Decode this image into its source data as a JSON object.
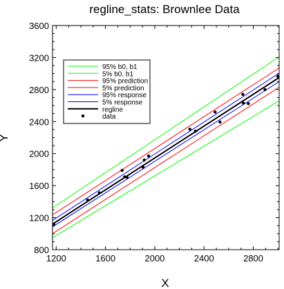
{
  "chart_data": {
    "type": "line",
    "title": "regline_stats: Brownlee Data",
    "xlabel": "X",
    "ylabel": "Y",
    "xlim": [
      1170,
      3010
    ],
    "ylim": [
      800,
      3600
    ],
    "x_ticks": [
      1200,
      1600,
      2000,
      2400,
      2800
    ],
    "y_ticks": [
      800,
      1200,
      1600,
      2000,
      2400,
      2800,
      3200,
      3600
    ],
    "grid": false,
    "legend_position": "upper-left",
    "series": [
      {
        "name": "95% b0, b1",
        "color": "#00ff00",
        "x": [
          1170,
          3010
        ],
        "y": [
          1320,
          3210
        ]
      },
      {
        "name": "5% b0, b1",
        "color": "#00ff00",
        "x": [
          1170,
          3010
        ],
        "y": [
          950,
          2660
        ]
      },
      {
        "name": "95% prediction",
        "color": "#ff0000",
        "x": [
          1170,
          3010
        ],
        "y": [
          1235,
          3070
        ]
      },
      {
        "name": "5% prediction",
        "color": "#ff0000",
        "x": [
          1170,
          3010
        ],
        "y": [
          1000,
          2830
        ]
      },
      {
        "name": "95% response",
        "color": "#0000ff",
        "x": [
          1170,
          3010
        ],
        "y": [
          1165,
          3005
        ]
      },
      {
        "name": "5% response",
        "color": "#0000ff",
        "x": [
          1170,
          3010
        ],
        "y": [
          1085,
          2900
        ]
      },
      {
        "name": "regline",
        "color": "#000000",
        "x": [
          1170,
          3010
        ],
        "y": [
          1120,
          2950
        ]
      }
    ],
    "points": {
      "name": "data",
      "color": "#000000",
      "x": [
        1180,
        1455,
        1550,
        1735,
        1755,
        1775,
        1905,
        1915,
        1950,
        2285,
        2330,
        2490,
        2530,
        2715,
        2720,
        2760,
        2895,
        3000
      ],
      "y": [
        1120,
        1420,
        1510,
        1790,
        1710,
        1705,
        1830,
        1920,
        1970,
        2305,
        2280,
        2520,
        2395,
        2740,
        2630,
        2625,
        2800,
        2965
      ]
    }
  }
}
